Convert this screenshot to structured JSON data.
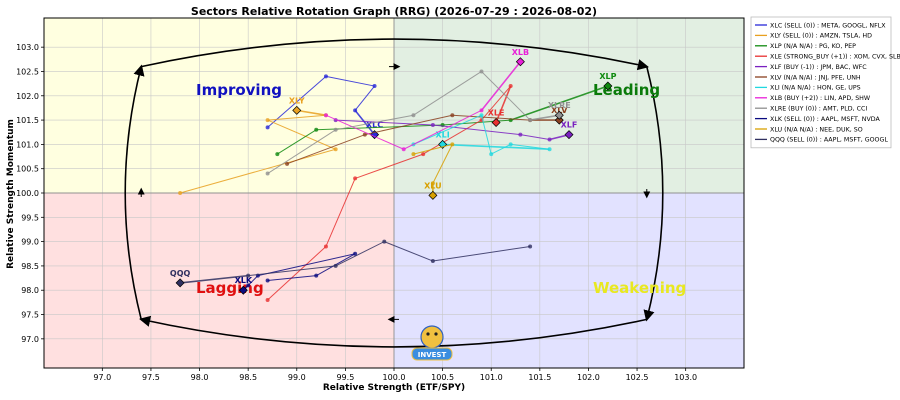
{
  "chart_data": {
    "type": "scatter",
    "title": "Sectors Relative Rotation Graph (RRG) (2026-07-29 : 2026-08-02)",
    "xlabel": "Relative Strength (ETF/SPY)",
    "ylabel": "Relative Strength Momentum",
    "xlim": [
      96.4,
      103.6
    ],
    "ylim": [
      96.4,
      103.6
    ],
    "xticks": [
      97.0,
      97.5,
      98.0,
      98.5,
      99.0,
      99.5,
      100.0,
      100.5,
      101.0,
      101.5,
      102.0,
      102.5,
      103.0
    ],
    "yticks": [
      97.0,
      97.5,
      98.0,
      98.5,
      99.0,
      99.5,
      100.0,
      100.5,
      101.0,
      101.5,
      102.0,
      102.5,
      103.0
    ],
    "xtick_labels": [
      "97.0",
      "97.5",
      "98.0",
      "98.5",
      "99.0",
      "99.5",
      "100.0",
      "100.5",
      "101.0",
      "101.5",
      "102.0",
      "102.5",
      "103.0"
    ],
    "ytick_labels": [
      "97.0",
      "97.5",
      "98.0",
      "98.5",
      "99.0",
      "99.5",
      "100.0",
      "100.5",
      "101.0",
      "101.5",
      "102.0",
      "102.5",
      "103.0"
    ],
    "grid": true,
    "legend_position": "right",
    "quadrants": {
      "improving": {
        "label": "Improving",
        "color": "#ffffe0",
        "text_color": "#1010c0"
      },
      "leading": {
        "label": "Leading",
        "color": "#e2efe2",
        "text_color": "#0a7a0a"
      },
      "lagging": {
        "label": "Lagging",
        "color": "#ffe0e0",
        "text_color": "#e01010"
      },
      "weakening": {
        "label": "Weakening",
        "color": "#e2e2ff",
        "text_color": "#e8e820"
      }
    },
    "series": [
      {
        "symbol": "XLC",
        "legend": "XLC (SELL (0)) : META, GOOGL, NFLX",
        "color": "#2828d8",
        "points": [
          [
            98.7,
            101.35
          ],
          [
            99.3,
            102.4
          ],
          [
            99.8,
            102.2
          ],
          [
            99.6,
            101.7
          ],
          [
            99.8,
            101.2
          ]
        ]
      },
      {
        "symbol": "XLY",
        "legend": "XLY (SELL (0)) : AMZN, TSLA, HD",
        "color": "#e8a020",
        "points": [
          [
            97.8,
            100.0
          ],
          [
            99.4,
            100.9
          ],
          [
            98.7,
            101.5
          ],
          [
            99.3,
            101.6
          ],
          [
            99.0,
            101.7
          ]
        ]
      },
      {
        "symbol": "XLP",
        "legend": "XLP (N/A N/A) : PG, KO, PEP",
        "color": "#108a10",
        "points": [
          [
            98.8,
            100.8
          ],
          [
            99.2,
            101.3
          ],
          [
            100.5,
            101.4
          ],
          [
            101.2,
            101.5
          ],
          [
            102.2,
            102.2
          ]
        ]
      },
      {
        "symbol": "XLE",
        "legend": "XLE (STRONG_BUY (+1)) : XOM, CVX, SLB",
        "color": "#e83030",
        "points": [
          [
            98.7,
            97.8
          ],
          [
            99.3,
            98.9
          ],
          [
            99.6,
            100.3
          ],
          [
            100.3,
            100.8
          ],
          [
            100.9,
            101.5
          ],
          [
            101.2,
            102.2
          ],
          [
            101.05,
            101.45
          ]
        ]
      },
      {
        "symbol": "XLF",
        "legend": "XLF (BUY (-1)) : JPM, BAC, WFC",
        "color": "#7a20c0",
        "points": [
          [
            99.4,
            101.5
          ],
          [
            100.4,
            101.4
          ],
          [
            101.3,
            101.2
          ],
          [
            101.6,
            101.1
          ],
          [
            101.8,
            101.2
          ]
        ]
      },
      {
        "symbol": "XLV",
        "legend": "XLV (N/A N/A) : JNJ, PFE, UNH",
        "color": "#8a4020",
        "points": [
          [
            98.9,
            100.6
          ],
          [
            99.7,
            101.2
          ],
          [
            100.6,
            101.6
          ],
          [
            101.4,
            101.5
          ],
          [
            101.7,
            101.5
          ]
        ]
      },
      {
        "symbol": "XLI",
        "legend": "XLI (N/A N/A) : HON, GE, UPS",
        "color": "#20d8e0",
        "points": [
          [
            100.2,
            101.0
          ],
          [
            100.9,
            101.6
          ],
          [
            101.0,
            100.8
          ],
          [
            101.2,
            101.0
          ],
          [
            101.6,
            100.9
          ],
          [
            100.5,
            101.0
          ]
        ]
      },
      {
        "symbol": "XLB",
        "legend": "XLB (BUY (+2)) : LIN, APD, SHW",
        "color": "#e820d8",
        "points": [
          [
            99.3,
            101.6
          ],
          [
            100.1,
            100.9
          ],
          [
            100.9,
            101.7
          ],
          [
            101.3,
            102.7
          ]
        ]
      },
      {
        "symbol": "XLRE",
        "legend": "XLRE (BUY (0)) : AMT, PLD, CCI",
        "color": "#909090",
        "points": [
          [
            98.7,
            100.4
          ],
          [
            99.4,
            101.3
          ],
          [
            100.2,
            101.6
          ],
          [
            100.9,
            102.5
          ],
          [
            101.4,
            101.5
          ],
          [
            101.7,
            101.6
          ]
        ]
      },
      {
        "symbol": "XLK",
        "legend": "XLK (SELL (0)) : AAPL, MSFT, NVDA",
        "color": "#0a0a80",
        "points": [
          [
            98.7,
            98.2
          ],
          [
            99.2,
            98.3
          ],
          [
            99.6,
            98.75
          ],
          [
            98.6,
            98.3
          ],
          [
            98.5,
            98.1
          ],
          [
            98.45,
            98.0
          ]
        ]
      },
      {
        "symbol": "XLU",
        "legend": "XLU (N/A N/A) : NEE, DUK, SO",
        "color": "#d8a000",
        "points": [
          [
            100.2,
            100.8
          ],
          [
            100.6,
            101.0
          ],
          [
            100.4,
            100.2
          ],
          [
            100.4,
            99.95
          ]
        ]
      },
      {
        "symbol": "QQQ",
        "legend": "QQQ (SELL (0)) : AAPL, MSFT, GOOGL",
        "color": "#303060",
        "points": [
          [
            101.4,
            98.9
          ],
          [
            100.4,
            98.6
          ],
          [
            99.9,
            99.0
          ],
          [
            99.4,
            98.5
          ],
          [
            98.5,
            98.3
          ],
          [
            97.8,
            98.15
          ]
        ]
      }
    ]
  },
  "logo": {
    "label": "INVEST"
  }
}
